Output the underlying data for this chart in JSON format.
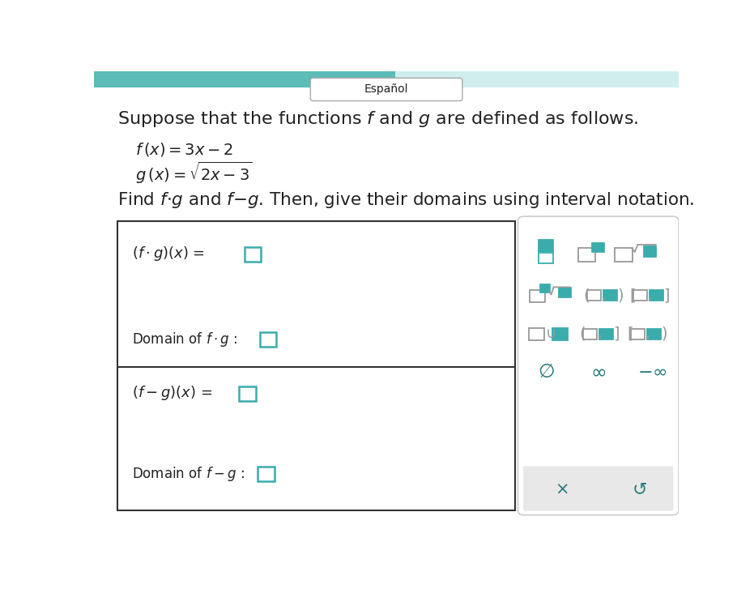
{
  "bg_color": "#ffffff",
  "teal_bar_color": "#5bbcb8",
  "symbol_color_teal": "#3AACAC",
  "symbol_color_gray": "#999999",
  "text_color": "#222222",
  "dark_teal": "#2a7a7a"
}
